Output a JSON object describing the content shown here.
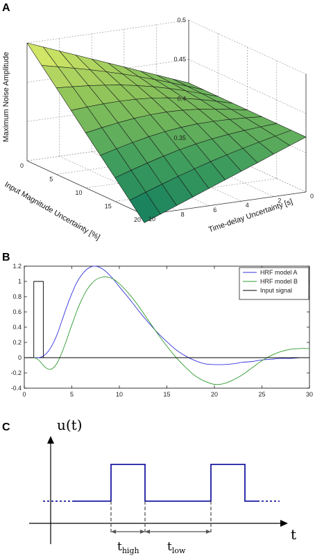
{
  "panels": {
    "a": {
      "letter": "A"
    },
    "b": {
      "letter": "B"
    },
    "c": {
      "letter": "C"
    }
  },
  "chart_data": [
    {
      "type": "surface",
      "panel": "A",
      "zlabel": "Maximum Noise Amplitude",
      "xlabel": "Input Magnitude Uncertainty [%]",
      "ylabel": "Time-delay Uncertainty [s]",
      "xlim": [
        0,
        20
      ],
      "ylim": [
        0,
        10
      ],
      "zlim": [
        0.35,
        0.5
      ],
      "x_ticks": [
        0,
        5,
        10,
        15,
        20
      ],
      "y_ticks": [
        0,
        2,
        4,
        6,
        8,
        10
      ],
      "z_ticks": [
        0.35,
        0.4,
        0.45,
        0.5
      ],
      "corners": {
        "x0_y0": 0.42,
        "x0_y10": 0.5,
        "x20_y0": 0.42,
        "x20_y10": 0.34
      },
      "grid": true,
      "colormap": [
        "#0f7a5e",
        "#3f9d5d",
        "#8cc35a",
        "#e8f06a"
      ]
    },
    {
      "type": "line",
      "panel": "B",
      "xlim": [
        0,
        30
      ],
      "ylim": [
        -0.4,
        1.2
      ],
      "x_ticks": [
        0,
        5,
        10,
        15,
        20,
        25,
        30
      ],
      "y_ticks": [
        -0.4,
        -0.2,
        0,
        0.2,
        0.4,
        0.6,
        0.8,
        1,
        1.2
      ],
      "legend_position": "top-right",
      "series": [
        {
          "name": "HRF model A",
          "color": "#3333dd",
          "x": [
            0,
            1,
            1.5,
            2,
            2.5,
            3,
            3.5,
            4,
            4.5,
            5,
            5.5,
            6,
            6.5,
            7,
            7.5,
            8,
            8.5,
            9,
            9.5,
            10,
            11,
            12,
            13,
            14,
            15,
            16,
            17,
            18,
            19,
            20,
            21,
            22,
            23,
            24,
            25,
            26,
            27,
            28,
            29,
            30
          ],
          "y": [
            0,
            0,
            0,
            0.02,
            0.08,
            0.18,
            0.32,
            0.5,
            0.68,
            0.84,
            0.98,
            1.08,
            1.15,
            1.19,
            1.2,
            1.18,
            1.14,
            1.08,
            1.01,
            0.93,
            0.78,
            0.62,
            0.47,
            0.33,
            0.21,
            0.1,
            0.02,
            -0.04,
            -0.08,
            -0.09,
            -0.09,
            -0.08,
            -0.06,
            -0.05,
            -0.03,
            -0.02,
            -0.01,
            -0.01,
            0,
            0
          ]
        },
        {
          "name": "HRF model B",
          "color": "#2e9a2e",
          "x": [
            0,
            1,
            1.5,
            2,
            2.5,
            3,
            3.5,
            4,
            4.5,
            5,
            5.5,
            6,
            6.5,
            7,
            7.5,
            8,
            8.5,
            9,
            9.5,
            10,
            11,
            12,
            13,
            14,
            15,
            16,
            17,
            18,
            19,
            20,
            21,
            22,
            23,
            24,
            25,
            26,
            27,
            28,
            29,
            30
          ],
          "y": [
            0,
            0,
            -0.03,
            -0.1,
            -0.15,
            -0.14,
            -0.06,
            0.08,
            0.25,
            0.43,
            0.6,
            0.75,
            0.87,
            0.96,
            1.02,
            1.05,
            1.06,
            1.05,
            1.02,
            0.97,
            0.84,
            0.68,
            0.5,
            0.32,
            0.15,
            0.0,
            -0.13,
            -0.24,
            -0.31,
            -0.35,
            -0.34,
            -0.29,
            -0.22,
            -0.13,
            -0.04,
            0.03,
            0.08,
            0.11,
            0.12,
            0.12
          ]
        },
        {
          "name": "Input signal",
          "color": "#000000",
          "x": [
            0,
            1,
            1,
            2,
            2,
            30
          ],
          "y": [
            0,
            0,
            1,
            1,
            0,
            0
          ]
        }
      ]
    },
    {
      "type": "line",
      "panel": "C",
      "ylabel": "u(t)",
      "xlabel": "t",
      "annotations": [
        "t_high",
        "t_low"
      ],
      "signal": "square pulse train (two pulses)"
    }
  ],
  "panel_c": {
    "ylabel": "u(t)",
    "xlabel": "t",
    "t_high": {
      "base": "t",
      "sub": "high"
    },
    "t_low": {
      "base": "t",
      "sub": "low"
    }
  }
}
